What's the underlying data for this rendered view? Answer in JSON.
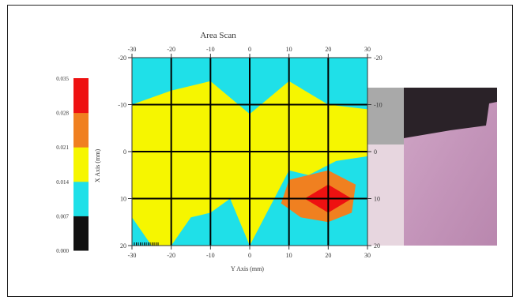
{
  "chart_data": {
    "type": "heatmap",
    "title": "Area Scan",
    "xlabel": "Y Axis (mm)",
    "ylabel": "X Axis (mm)",
    "x_ticks": [
      -30,
      -20,
      -10,
      0,
      10,
      20,
      30
    ],
    "y_ticks": [
      -20,
      -10,
      0,
      10,
      20
    ],
    "xlim": [
      -30,
      30
    ],
    "ylim": [
      -20,
      20
    ],
    "y_reversed": true,
    "grid": true,
    "legend_placement": "left",
    "colorbar": {
      "ticks": [
        "0.000",
        "0.007",
        "0.014",
        "0.021",
        "0.028",
        "0.035"
      ],
      "bands": [
        {
          "min": 0.0,
          "max": 0.007,
          "color": "#111111"
        },
        {
          "min": 0.007,
          "max": 0.014,
          "color": "#1fe0e8"
        },
        {
          "min": 0.014,
          "max": 0.021,
          "color": "#f6f600"
        },
        {
          "min": 0.021,
          "max": 0.028,
          "color": "#f08020"
        },
        {
          "min": 0.028,
          "max": 0.035,
          "color": "#ee1111"
        }
      ]
    },
    "regions": [
      {
        "band": 1,
        "polygon": [
          [
            -30,
            -20
          ],
          [
            30,
            -20
          ],
          [
            30,
            20
          ],
          [
            -30,
            20
          ]
        ]
      },
      {
        "band": 2,
        "polygon": [
          [
            -30,
            -10
          ],
          [
            -20,
            -13
          ],
          [
            -10,
            -15
          ],
          [
            0,
            -8
          ],
          [
            10,
            -15
          ],
          [
            20,
            -10
          ],
          [
            30,
            -9
          ],
          [
            30,
            1
          ],
          [
            22,
            2
          ],
          [
            15,
            5
          ],
          [
            10,
            4
          ],
          [
            5,
            12
          ],
          [
            0,
            20
          ],
          [
            -5,
            10
          ],
          [
            -10,
            13
          ],
          [
            -15,
            14
          ],
          [
            -20,
            20
          ],
          [
            -25,
            20
          ],
          [
            -30,
            14
          ]
        ]
      },
      {
        "band": 3,
        "polygon": [
          [
            10,
            6
          ],
          [
            20,
            4
          ],
          [
            27,
            7
          ],
          [
            26,
            13
          ],
          [
            20,
            15
          ],
          [
            13,
            14
          ],
          [
            8,
            11
          ]
        ]
      },
      {
        "band": 4,
        "polygon": [
          [
            14,
            10
          ],
          [
            20,
            7
          ],
          [
            26,
            10
          ],
          [
            20,
            13
          ]
        ]
      }
    ],
    "photo_inset": {
      "description": "photograph of scanned sample adjacent to plot",
      "colors": {
        "dark": "#2a2228",
        "gray": "#a9a9a9",
        "pink": "#c79abd"
      }
    }
  }
}
